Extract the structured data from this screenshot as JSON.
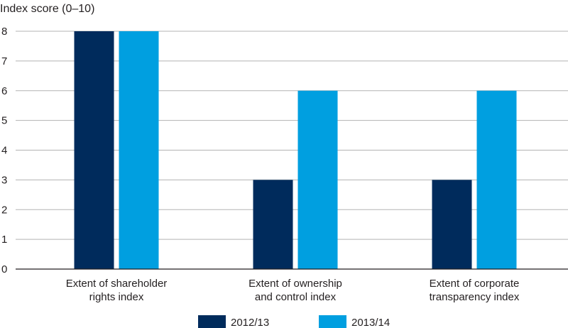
{
  "chart_data": {
    "type": "bar",
    "ylabel": "Index score (0–10)",
    "categories": [
      [
        "Extent of shareholder",
        "rights index"
      ],
      [
        "Extent of ownership",
        "and control index"
      ],
      [
        "Extent of corporate",
        "transparency index"
      ]
    ],
    "series": [
      {
        "name": "2012/13",
        "color": "#002b5c",
        "values": [
          8,
          3,
          3
        ]
      },
      {
        "name": "2013/14",
        "color": "#009fe0",
        "values": [
          8,
          6,
          6
        ]
      }
    ],
    "ylim": [
      0,
      8
    ],
    "yticks": [
      0,
      1,
      2,
      3,
      4,
      5,
      6,
      7,
      8
    ],
    "grid": true,
    "legend": "bottom-center"
  }
}
